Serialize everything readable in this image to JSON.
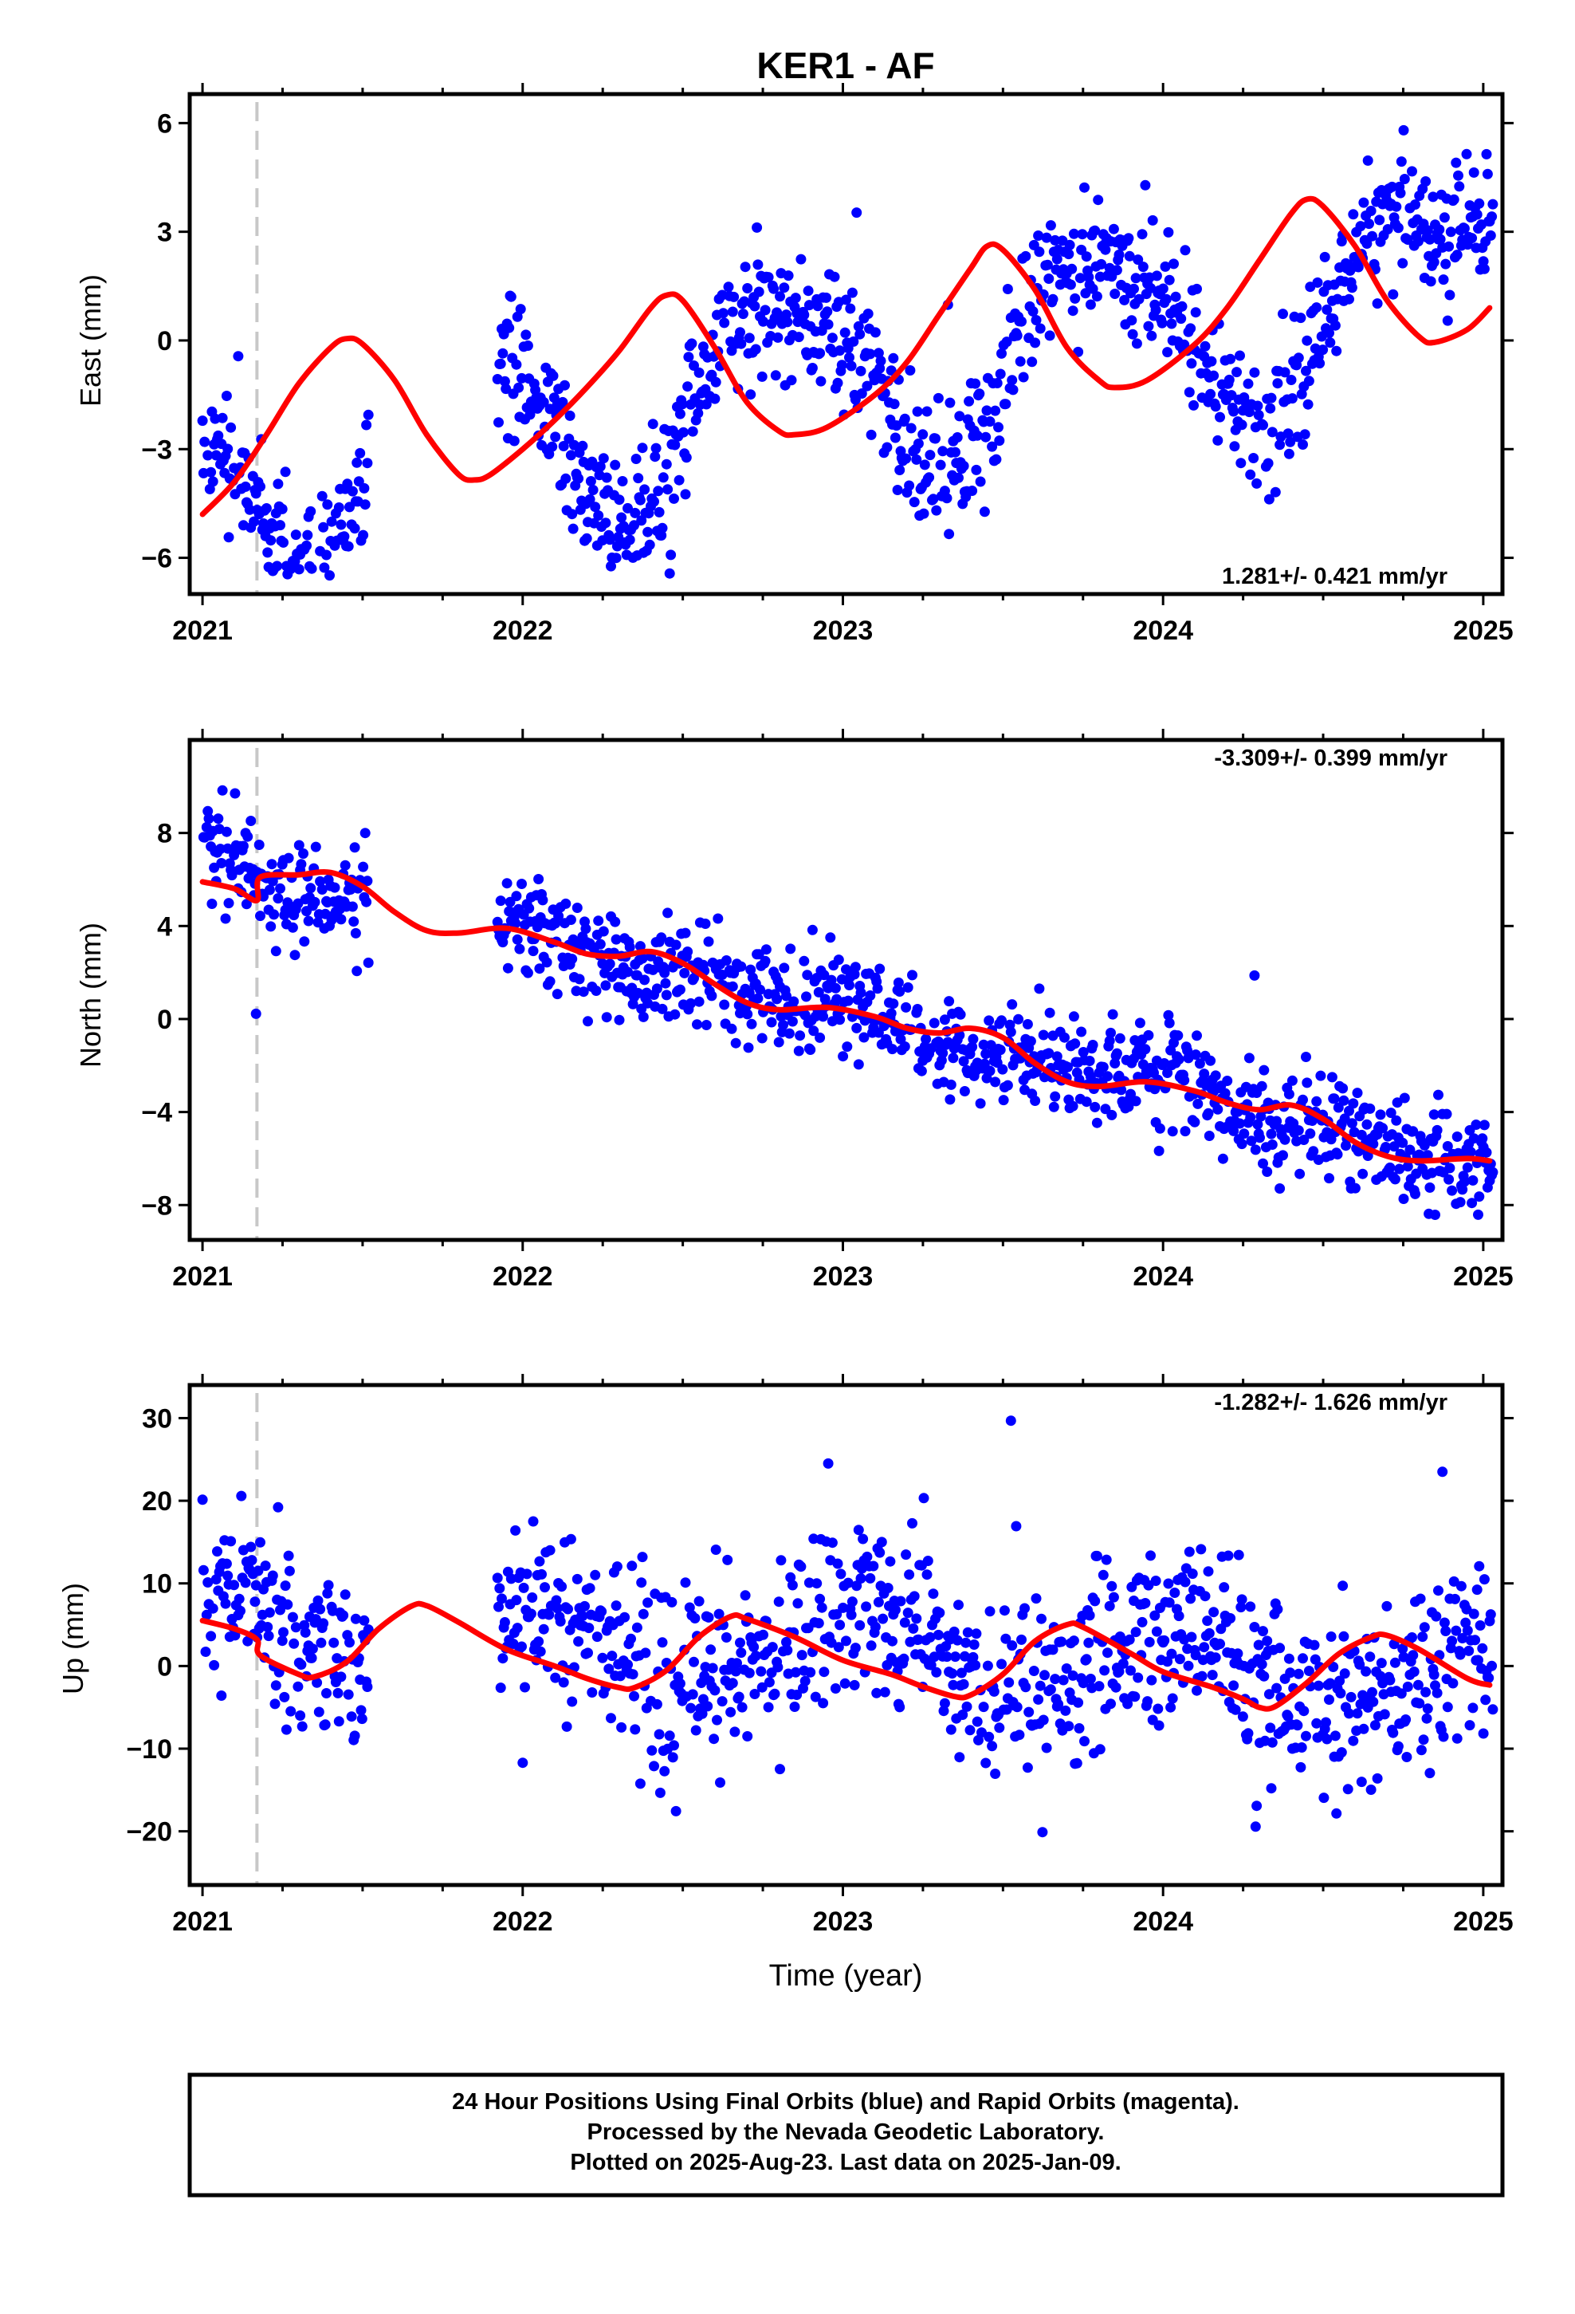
{
  "title": "KER1 - AF",
  "xlabel": "Time (year)",
  "footer": [
    "24 Hour Positions Using Final Orbits (blue) and Rapid Orbits (magenta).",
    "Processed by the Nevada Geodetic Laboratory.",
    "Plotted on 2025-Aug-23. Last data on 2025-Jan-09."
  ],
  "colors": {
    "final_orbit_points": "#0000ff",
    "rapid_orbit_points": "#ff00ff",
    "model_curve": "#ff0000",
    "equipment_change_line": "#c8c8c8"
  },
  "chart_data": [
    {
      "type": "scatter",
      "ylabel": "East (mm)",
      "rate_label": "1.281+/- 0.421 mm/yr",
      "rate_placement": "bottom-right",
      "xlim": [
        2020.96,
        2025.06
      ],
      "ylim": [
        -7,
        6.8
      ],
      "xticks": [
        2021,
        2022,
        2023,
        2024,
        2025
      ],
      "yticks": [
        6,
        3,
        0,
        -3,
        -6
      ],
      "ytick_labels": [
        "6",
        "3",
        "0",
        "−3",
        "−6"
      ],
      "event_x": 2021.17,
      "data_gap": [
        2021.52,
        2021.92
      ],
      "model_curve": [
        [
          2021.0,
          -4.8
        ],
        [
          2021.1,
          -3.9
        ],
        [
          2021.2,
          -2.6
        ],
        [
          2021.3,
          -1.2
        ],
        [
          2021.4,
          -0.2
        ],
        [
          2021.45,
          0.05
        ],
        [
          2021.5,
          -0.1
        ],
        [
          2021.6,
          -1.1
        ],
        [
          2021.7,
          -2.6
        ],
        [
          2021.8,
          -3.7
        ],
        [
          2021.85,
          -3.85
        ],
        [
          2021.9,
          -3.7
        ],
        [
          2022.0,
          -3.0
        ],
        [
          2022.1,
          -2.2
        ],
        [
          2022.2,
          -1.3
        ],
        [
          2022.3,
          -0.3
        ],
        [
          2022.4,
          0.9
        ],
        [
          2022.45,
          1.25
        ],
        [
          2022.5,
          1.1
        ],
        [
          2022.6,
          -0.2
        ],
        [
          2022.7,
          -1.7
        ],
        [
          2022.8,
          -2.5
        ],
        [
          2022.85,
          -2.6
        ],
        [
          2022.95,
          -2.4
        ],
        [
          2023.1,
          -1.5
        ],
        [
          2023.2,
          -0.6
        ],
        [
          2023.3,
          0.7
        ],
        [
          2023.4,
          2.0
        ],
        [
          2023.45,
          2.6
        ],
        [
          2023.5,
          2.5
        ],
        [
          2023.6,
          1.4
        ],
        [
          2023.7,
          -0.2
        ],
        [
          2023.8,
          -1.1
        ],
        [
          2023.85,
          -1.3
        ],
        [
          2023.95,
          -1.1
        ],
        [
          2024.1,
          -0.1
        ],
        [
          2024.2,
          0.9
        ],
        [
          2024.3,
          2.2
        ],
        [
          2024.4,
          3.5
        ],
        [
          2024.45,
          3.9
        ],
        [
          2024.5,
          3.7
        ],
        [
          2024.6,
          2.6
        ],
        [
          2024.7,
          1.1
        ],
        [
          2024.8,
          0.1
        ],
        [
          2024.85,
          -0.05
        ],
        [
          2024.95,
          0.3
        ],
        [
          2025.02,
          0.9
        ]
      ],
      "seasonal_model": {
        "offset": -3.55,
        "rate": 1.281,
        "t0": 2021.0,
        "amp1": 2.6,
        "amp2": 0.6,
        "phase1": 2.8,
        "phase2": 0.4
      },
      "n_points": 1230,
      "noise_sd": 0.9
    },
    {
      "type": "scatter",
      "ylabel": "North (mm)",
      "rate_label": "-3.309+/- 0.399 mm/yr",
      "rate_placement": "top-right",
      "xlim": [
        2020.96,
        2025.06
      ],
      "ylim": [
        -9.5,
        12
      ],
      "xticks": [
        2021,
        2022,
        2023,
        2024,
        2025
      ],
      "yticks": [
        8,
        4,
        0,
        -4,
        -8
      ],
      "ytick_labels": [
        "8",
        "4",
        "0",
        "−4",
        "−8"
      ],
      "event_x": 2021.17,
      "data_gap": [
        2021.52,
        2021.92
      ],
      "model_curve": [
        [
          2021.0,
          5.9
        ],
        [
          2021.1,
          5.6
        ],
        [
          2021.17,
          5.1
        ],
        [
          2021.18,
          6.1
        ],
        [
          2021.3,
          6.2
        ],
        [
          2021.4,
          6.3
        ],
        [
          2021.5,
          5.7
        ],
        [
          2021.6,
          4.6
        ],
        [
          2021.7,
          3.8
        ],
        [
          2021.8,
          3.7
        ],
        [
          2021.95,
          3.9
        ],
        [
          2022.1,
          3.3
        ],
        [
          2022.2,
          2.8
        ],
        [
          2022.3,
          2.7
        ],
        [
          2022.4,
          2.9
        ],
        [
          2022.5,
          2.4
        ],
        [
          2022.6,
          1.5
        ],
        [
          2022.7,
          0.7
        ],
        [
          2022.8,
          0.4
        ],
        [
          2022.95,
          0.5
        ],
        [
          2023.1,
          0.1
        ],
        [
          2023.2,
          -0.4
        ],
        [
          2023.3,
          -0.6
        ],
        [
          2023.4,
          -0.4
        ],
        [
          2023.5,
          -0.8
        ],
        [
          2023.6,
          -1.9
        ],
        [
          2023.7,
          -2.7
        ],
        [
          2023.8,
          -2.9
        ],
        [
          2023.95,
          -2.7
        ],
        [
          2024.1,
          -3.1
        ],
        [
          2024.2,
          -3.6
        ],
        [
          2024.3,
          -3.9
        ],
        [
          2024.4,
          -3.7
        ],
        [
          2024.5,
          -4.3
        ],
        [
          2024.6,
          -5.3
        ],
        [
          2024.7,
          -5.9
        ],
        [
          2024.8,
          -6.1
        ],
        [
          2024.95,
          -6.0
        ],
        [
          2025.02,
          -6.1
        ]
      ],
      "seasonal_model": {
        "offset": 6.9,
        "rate": -3.309,
        "t0": 2021.0,
        "amp1": 0.35,
        "amp2": 0.25,
        "phase1": 2.0,
        "phase2": 1.0
      },
      "n_points": 1230,
      "noise_sd": 1.1
    },
    {
      "type": "scatter",
      "ylabel": "Up (mm)",
      "rate_label": "-1.282+/- 1.626 mm/yr",
      "rate_placement": "top-right",
      "xlim": [
        2020.96,
        2025.06
      ],
      "ylim": [
        -26.5,
        34
      ],
      "xticks": [
        2021,
        2022,
        2023,
        2024,
        2025
      ],
      "yticks": [
        30,
        20,
        10,
        0,
        -10,
        -20
      ],
      "ytick_labels": [
        "30",
        "20",
        "10",
        "0",
        "−10",
        "−20"
      ],
      "event_x": 2021.17,
      "data_gap": [
        2021.52,
        2021.92
      ],
      "model_curve": [
        [
          2021.0,
          5.5
        ],
        [
          2021.1,
          4.5
        ],
        [
          2021.17,
          3.2
        ],
        [
          2021.18,
          1.3
        ],
        [
          2021.3,
          -1.0
        ],
        [
          2021.35,
          -1.3
        ],
        [
          2021.45,
          0.5
        ],
        [
          2021.55,
          4.5
        ],
        [
          2021.65,
          7.2
        ],
        [
          2021.7,
          7.3
        ],
        [
          2021.8,
          5.3
        ],
        [
          2021.95,
          2.0
        ],
        [
          2022.1,
          0.0
        ],
        [
          2022.2,
          -1.5
        ],
        [
          2022.3,
          -2.6
        ],
        [
          2022.35,
          -2.6
        ],
        [
          2022.45,
          -0.5
        ],
        [
          2022.55,
          3.5
        ],
        [
          2022.65,
          6.0
        ],
        [
          2022.7,
          5.7
        ],
        [
          2022.85,
          3.5
        ],
        [
          2023.0,
          0.7
        ],
        [
          2023.15,
          -1.0
        ],
        [
          2023.25,
          -2.5
        ],
        [
          2023.35,
          -3.7
        ],
        [
          2023.4,
          -3.5
        ],
        [
          2023.5,
          -1.0
        ],
        [
          2023.6,
          3.0
        ],
        [
          2023.7,
          5.0
        ],
        [
          2023.75,
          4.7
        ],
        [
          2023.9,
          1.5
        ],
        [
          2024.0,
          -0.7
        ],
        [
          2024.15,
          -2.5
        ],
        [
          2024.25,
          -4.0
        ],
        [
          2024.3,
          -5.0
        ],
        [
          2024.35,
          -4.9
        ],
        [
          2024.45,
          -2.0
        ],
        [
          2024.55,
          1.5
        ],
        [
          2024.65,
          3.5
        ],
        [
          2024.7,
          3.7
        ],
        [
          2024.8,
          2.0
        ],
        [
          2024.95,
          -1.5
        ],
        [
          2025.02,
          -2.3
        ]
      ],
      "seasonal_model": {
        "offset": 4.5,
        "rate": -1.282,
        "t0": 2021.0,
        "amp1": 4.2,
        "amp2": 0.8,
        "phase1": 1.3,
        "phase2": 0.2
      },
      "n_points": 1230,
      "noise_sd": 5.4
    }
  ]
}
